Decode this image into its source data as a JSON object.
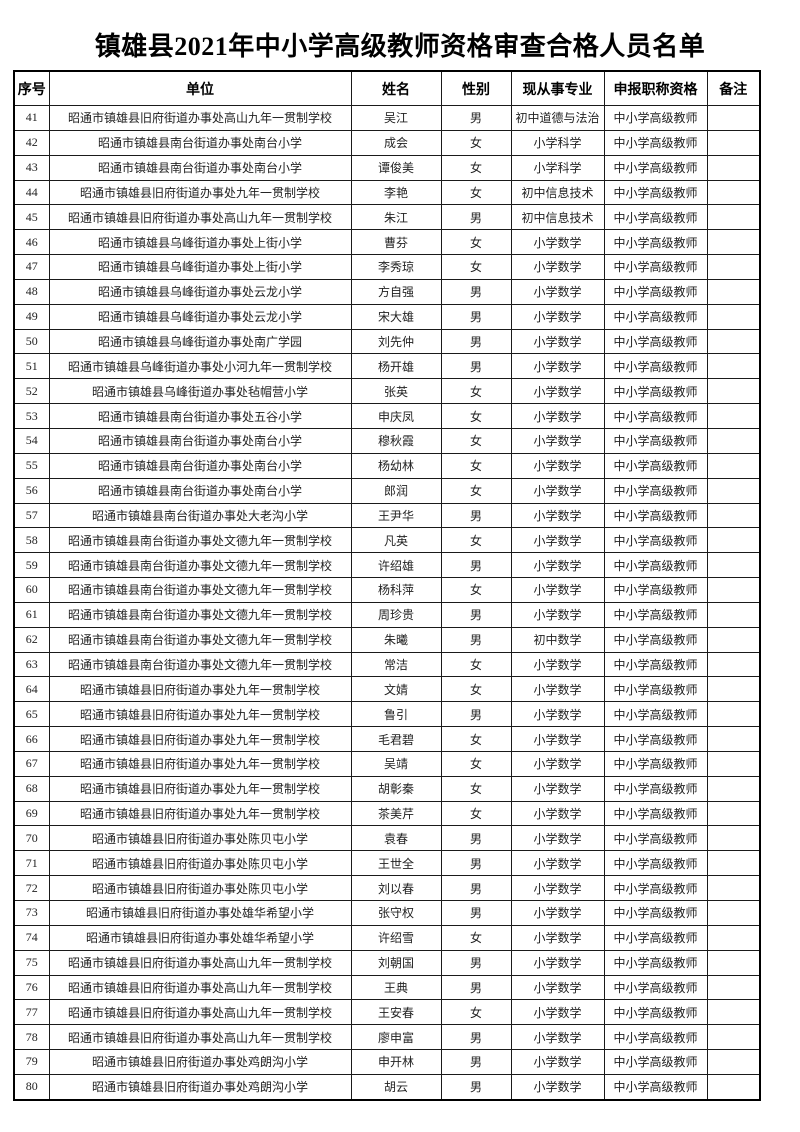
{
  "title": "镇雄县2021年中小学高级教师资格审查合格人员名单",
  "table": {
    "headers": [
      "序号",
      "单位",
      "姓名",
      "性别",
      "现从事专业",
      "申报职称资格",
      "备注"
    ],
    "rows": [
      [
        "41",
        "昭通市镇雄县旧府街道办事处高山九年一贯制学校",
        "吴江",
        "男",
        "初中道德与法治",
        "中小学高级教师",
        ""
      ],
      [
        "42",
        "昭通市镇雄县南台街道办事处南台小学",
        "成会",
        "女",
        "小学科学",
        "中小学高级教师",
        ""
      ],
      [
        "43",
        "昭通市镇雄县南台街道办事处南台小学",
        "谭俊美",
        "女",
        "小学科学",
        "中小学高级教师",
        ""
      ],
      [
        "44",
        "昭通市镇雄县旧府街道办事处九年一贯制学校",
        "李艳",
        "女",
        "初中信息技术",
        "中小学高级教师",
        ""
      ],
      [
        "45",
        "昭通市镇雄县旧府街道办事处高山九年一贯制学校",
        "朱江",
        "男",
        "初中信息技术",
        "中小学高级教师",
        ""
      ],
      [
        "46",
        "昭通市镇雄县乌峰街道办事处上街小学",
        "曹芬",
        "女",
        "小学数学",
        "中小学高级教师",
        ""
      ],
      [
        "47",
        "昭通市镇雄县乌峰街道办事处上街小学",
        "李秀琼",
        "女",
        "小学数学",
        "中小学高级教师",
        ""
      ],
      [
        "48",
        "昭通市镇雄县乌峰街道办事处云龙小学",
        "方自强",
        "男",
        "小学数学",
        "中小学高级教师",
        ""
      ],
      [
        "49",
        "昭通市镇雄县乌峰街道办事处云龙小学",
        "宋大雄",
        "男",
        "小学数学",
        "中小学高级教师",
        ""
      ],
      [
        "50",
        "昭通市镇雄县乌峰街道办事处南广学园",
        "刘先仲",
        "男",
        "小学数学",
        "中小学高级教师",
        ""
      ],
      [
        "51",
        "昭通市镇雄县乌峰街道办事处小河九年一贯制学校",
        "杨开雄",
        "男",
        "小学数学",
        "中小学高级教师",
        ""
      ],
      [
        "52",
        "昭通市镇雄县乌峰街道办事处毡帽营小学",
        "张英",
        "女",
        "小学数学",
        "中小学高级教师",
        ""
      ],
      [
        "53",
        "昭通市镇雄县南台街道办事处五谷小学",
        "申庆凤",
        "女",
        "小学数学",
        "中小学高级教师",
        ""
      ],
      [
        "54",
        "昭通市镇雄县南台街道办事处南台小学",
        "穆秋霞",
        "女",
        "小学数学",
        "中小学高级教师",
        ""
      ],
      [
        "55",
        "昭通市镇雄县南台街道办事处南台小学",
        "杨幼林",
        "女",
        "小学数学",
        "中小学高级教师",
        ""
      ],
      [
        "56",
        "昭通市镇雄县南台街道办事处南台小学",
        "郎润",
        "女",
        "小学数学",
        "中小学高级教师",
        ""
      ],
      [
        "57",
        "昭通市镇雄县南台街道办事处大老沟小学",
        "王尹华",
        "男",
        "小学数学",
        "中小学高级教师",
        ""
      ],
      [
        "58",
        "昭通市镇雄县南台街道办事处文德九年一贯制学校",
        "凡英",
        "女",
        "小学数学",
        "中小学高级教师",
        ""
      ],
      [
        "59",
        "昭通市镇雄县南台街道办事处文德九年一贯制学校",
        "许绍雄",
        "男",
        "小学数学",
        "中小学高级教师",
        ""
      ],
      [
        "60",
        "昭通市镇雄县南台街道办事处文德九年一贯制学校",
        "杨科萍",
        "女",
        "小学数学",
        "中小学高级教师",
        ""
      ],
      [
        "61",
        "昭通市镇雄县南台街道办事处文德九年一贯制学校",
        "周珍贵",
        "男",
        "小学数学",
        "中小学高级教师",
        ""
      ],
      [
        "62",
        "昭通市镇雄县南台街道办事处文德九年一贯制学校",
        "朱曦",
        "男",
        "初中数学",
        "中小学高级教师",
        ""
      ],
      [
        "63",
        "昭通市镇雄县南台街道办事处文德九年一贯制学校",
        "常洁",
        "女",
        "小学数学",
        "中小学高级教师",
        ""
      ],
      [
        "64",
        "昭通市镇雄县旧府街道办事处九年一贯制学校",
        "文婧",
        "女",
        "小学数学",
        "中小学高级教师",
        ""
      ],
      [
        "65",
        "昭通市镇雄县旧府街道办事处九年一贯制学校",
        "鲁引",
        "男",
        "小学数学",
        "中小学高级教师",
        ""
      ],
      [
        "66",
        "昭通市镇雄县旧府街道办事处九年一贯制学校",
        "毛君碧",
        "女",
        "小学数学",
        "中小学高级教师",
        ""
      ],
      [
        "67",
        "昭通市镇雄县旧府街道办事处九年一贯制学校",
        "吴靖",
        "女",
        "小学数学",
        "中小学高级教师",
        ""
      ],
      [
        "68",
        "昭通市镇雄县旧府街道办事处九年一贯制学校",
        "胡彰秦",
        "女",
        "小学数学",
        "中小学高级教师",
        ""
      ],
      [
        "69",
        "昭通市镇雄县旧府街道办事处九年一贯制学校",
        "茶美芹",
        "女",
        "小学数学",
        "中小学高级教师",
        ""
      ],
      [
        "70",
        "昭通市镇雄县旧府街道办事处陈贝屯小学",
        "袁春",
        "男",
        "小学数学",
        "中小学高级教师",
        ""
      ],
      [
        "71",
        "昭通市镇雄县旧府街道办事处陈贝屯小学",
        "王世全",
        "男",
        "小学数学",
        "中小学高级教师",
        ""
      ],
      [
        "72",
        "昭通市镇雄县旧府街道办事处陈贝屯小学",
        "刘以春",
        "男",
        "小学数学",
        "中小学高级教师",
        ""
      ],
      [
        "73",
        "昭通市镇雄县旧府街道办事处雄华希望小学",
        "张守权",
        "男",
        "小学数学",
        "中小学高级教师",
        ""
      ],
      [
        "74",
        "昭通市镇雄县旧府街道办事处雄华希望小学",
        "许绍雪",
        "女",
        "小学数学",
        "中小学高级教师",
        ""
      ],
      [
        "75",
        "昭通市镇雄县旧府街道办事处高山九年一贯制学校",
        "刘朝国",
        "男",
        "小学数学",
        "中小学高级教师",
        ""
      ],
      [
        "76",
        "昭通市镇雄县旧府街道办事处高山九年一贯制学校",
        "王典",
        "男",
        "小学数学",
        "中小学高级教师",
        ""
      ],
      [
        "77",
        "昭通市镇雄县旧府街道办事处高山九年一贯制学校",
        "王安春",
        "女",
        "小学数学",
        "中小学高级教师",
        ""
      ],
      [
        "78",
        "昭通市镇雄县旧府街道办事处高山九年一贯制学校",
        "廖申富",
        "男",
        "小学数学",
        "中小学高级教师",
        ""
      ],
      [
        "79",
        "昭通市镇雄县旧府街道办事处鸡朗沟小学",
        "申开林",
        "男",
        "小学数学",
        "中小学高级教师",
        ""
      ],
      [
        "80",
        "昭通市镇雄县旧府街道办事处鸡朗沟小学",
        "胡云",
        "男",
        "小学数学",
        "中小学高级教师",
        ""
      ]
    ]
  }
}
